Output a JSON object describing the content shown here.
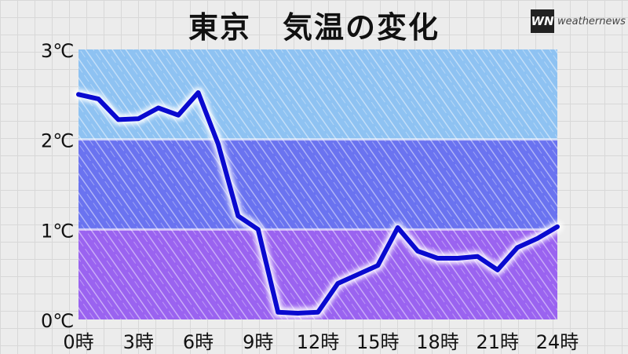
{
  "header": {
    "title": "東京　気温の変化",
    "logo_mark": "WN",
    "logo_text": "weathernews"
  },
  "colors": {
    "band_high": "#8ec2f2",
    "band_mid": "#6a73f0",
    "band_low": "#9a63f0",
    "line": "#0a0ad0",
    "background": "#ececec"
  },
  "chart_data": {
    "type": "line",
    "title": "東京　気温の変化",
    "xlabel": "",
    "ylabel": "",
    "xlim": [
      0,
      24
    ],
    "ylim": [
      0,
      3
    ],
    "grid": false,
    "x_ticks": [
      0,
      3,
      6,
      9,
      12,
      15,
      18,
      21,
      24
    ],
    "x_tick_labels": [
      "0時",
      "3時",
      "6時",
      "9時",
      "12時",
      "15時",
      "18時",
      "21時",
      "24時"
    ],
    "y_ticks": [
      0,
      1,
      2,
      3
    ],
    "y_tick_labels": [
      "0℃",
      "1℃",
      "2℃",
      "3℃"
    ],
    "bands": [
      {
        "from": 2,
        "to": 3,
        "color": "#8ec2f2"
      },
      {
        "from": 1,
        "to": 2,
        "color": "#6a73f0"
      },
      {
        "from": 0,
        "to": 1,
        "color": "#9a63f0"
      }
    ],
    "series": [
      {
        "x": [
          0,
          1,
          2,
          3,
          4,
          5,
          6,
          7,
          8,
          9,
          10,
          11,
          12,
          13,
          14,
          15,
          16,
          17,
          18,
          19,
          20,
          21,
          22,
          23,
          24
        ],
        "values": [
          2.5,
          2.45,
          2.22,
          2.23,
          2.35,
          2.27,
          2.52,
          1.95,
          1.15,
          1.0,
          0.08,
          0.07,
          0.08,
          0.4,
          0.5,
          0.6,
          1.02,
          0.76,
          0.68,
          0.68,
          0.7,
          0.55,
          0.8,
          0.9,
          1.03
        ]
      }
    ]
  }
}
